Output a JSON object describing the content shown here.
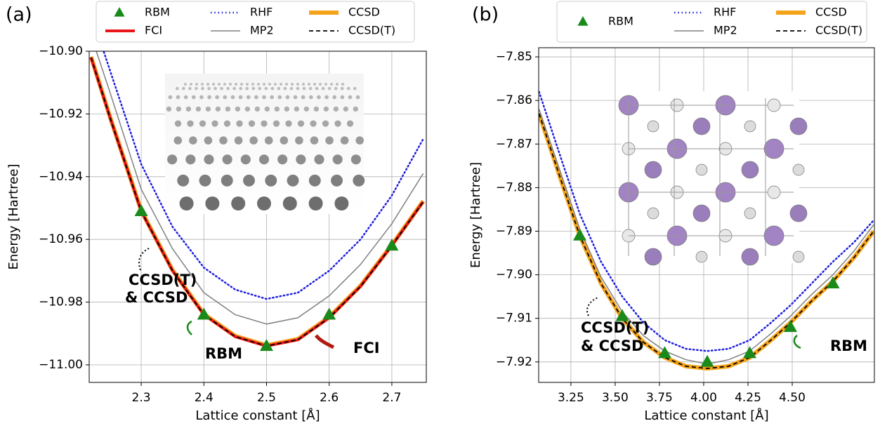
{
  "chart_data": [
    {
      "type": "line",
      "panel_label": "(a)",
      "xlabel": "Lattice constant [Å]",
      "ylabel": "Energy [Hartree]",
      "xlim": [
        2.217,
        2.755
      ],
      "ylim": [
        -11.0056,
        -10.9
      ],
      "xticks": [
        2.3,
        2.4,
        2.5,
        2.6,
        2.7
      ],
      "yticks": [
        {
          "value": -10.9,
          "label": "−10.90"
        },
        {
          "value": -10.92,
          "label": "−10.92"
        },
        {
          "value": -10.94,
          "label": "−10.94"
        },
        {
          "value": -10.96,
          "label": "−10.96"
        },
        {
          "value": -10.98,
          "label": "−10.98"
        },
        {
          "value": -11.0,
          "label": "−11.00"
        }
      ],
      "grid": true,
      "x": [
        2.22,
        2.25,
        2.3,
        2.35,
        2.4,
        2.45,
        2.5,
        2.55,
        2.6,
        2.65,
        2.7,
        2.75
      ],
      "series": [
        {
          "name": "RBM",
          "color": "#1a8a1a",
          "style": "marker",
          "x": [
            2.3,
            2.4,
            2.5,
            2.6,
            2.7
          ],
          "values": [
            -10.951,
            -10.984,
            -10.994,
            -10.984,
            -10.962
          ]
        },
        {
          "name": "RHF",
          "color": "#1f1fe0",
          "style": "dotted",
          "linewidth": 2.5,
          "values": [
            -10.888,
            -10.906,
            -10.936,
            -10.956,
            -10.969,
            -10.976,
            -10.979,
            -10.977,
            -10.97,
            -10.96,
            -10.946,
            -10.928
          ]
        },
        {
          "name": "CCSD",
          "color": "#f5a31a",
          "style": "solid",
          "linewidth": 6,
          "values": [
            -10.9018,
            -10.9208,
            -10.9508,
            -10.9698,
            -10.9838,
            -10.9908,
            -10.9938,
            -10.9918,
            -10.9848,
            -10.9748,
            -10.9618,
            -10.9478
          ]
        },
        {
          "name": "FCI",
          "color": "#e8161b",
          "style": "solid",
          "linewidth": 4,
          "values": [
            -10.902,
            -10.921,
            -10.951,
            -10.97,
            -10.984,
            -10.991,
            -10.994,
            -10.992,
            -10.985,
            -10.975,
            -10.962,
            -10.948
          ]
        },
        {
          "name": "MP2",
          "color": "#808080",
          "style": "solid",
          "linewidth": 1.5,
          "values": [
            -10.895,
            -10.913,
            -10.944,
            -10.963,
            -10.977,
            -10.984,
            -10.987,
            -10.985,
            -10.978,
            -10.968,
            -10.955,
            -10.939
          ]
        },
        {
          "name": "CCSD(T)",
          "color": "#000000",
          "style": "dashed",
          "linewidth": 1.8,
          "values": [
            -10.902,
            -10.921,
            -10.951,
            -10.97,
            -10.984,
            -10.991,
            -10.994,
            -10.992,
            -10.985,
            -10.975,
            -10.962,
            -10.948
          ]
        }
      ],
      "annotations": [
        {
          "text": "CCSD(T)",
          "color": "#000000"
        },
        {
          "text": "& CCSD",
          "color": "#f5a31a"
        },
        {
          "text": "RBM",
          "color": "#1a8a1a"
        },
        {
          "text": "FCI",
          "color": "#b01a10"
        }
      ]
    },
    {
      "type": "line",
      "panel_label": "(b)",
      "xlabel": "Lattice constant [Å]",
      "ylabel": "Energy [Hartree]",
      "xlim": [
        3.068,
        4.964
      ],
      "ylim": [
        -7.9247,
        -7.8479
      ],
      "xticks": [
        3.25,
        {
          "value": 3.5,
          "label": "3.50"
        },
        3.75,
        {
          "value": 4.0,
          "label": "4.00"
        },
        4.25,
        {
          "value": 4.5,
          "label": "4.50"
        }
      ],
      "yticks": [
        {
          "value": -7.85,
          "label": "−7.85"
        },
        {
          "value": -7.86,
          "label": "−7.86"
        },
        {
          "value": -7.87,
          "label": "−7.87"
        },
        {
          "value": -7.88,
          "label": "−7.88"
        },
        {
          "value": -7.89,
          "label": "−7.89"
        },
        {
          "value": -7.9,
          "label": "−7.90"
        },
        {
          "value": -7.91,
          "label": "−7.91"
        },
        {
          "value": -7.92,
          "label": "−7.92"
        }
      ],
      "grid": true,
      "x": [
        3.07,
        3.2,
        3.3,
        3.42,
        3.54,
        3.66,
        3.78,
        3.9,
        4.02,
        4.14,
        4.26,
        4.38,
        4.49,
        4.61,
        4.73,
        4.85,
        4.96
      ],
      "series": [
        {
          "name": "RBM",
          "color": "#1a8a1a",
          "style": "marker",
          "x": [
            3.3,
            3.54,
            3.78,
            4.02,
            4.26,
            4.49,
            4.73
          ],
          "values": [
            -7.891,
            -7.9095,
            -7.918,
            -7.92,
            -7.918,
            -7.912,
            -7.902
          ]
        },
        {
          "name": "RHF",
          "color": "#1f1fe0",
          "style": "dotted",
          "linewidth": 2.5,
          "values": [
            -7.858,
            -7.874,
            -7.886,
            -7.897,
            -7.905,
            -7.911,
            -7.915,
            -7.917,
            -7.9175,
            -7.917,
            -7.915,
            -7.911,
            -7.907,
            -7.902,
            -7.897,
            -7.8925,
            -7.8875
          ]
        },
        {
          "name": "CCSD",
          "color": "#f5a31a",
          "style": "solid",
          "linewidth": 6,
          "values": [
            -7.863,
            -7.879,
            -7.891,
            -7.902,
            -7.91,
            -7.9155,
            -7.919,
            -7.921,
            -7.9215,
            -7.921,
            -7.919,
            -7.915,
            -7.911,
            -7.906,
            -7.9015,
            -7.896,
            -7.89
          ]
        },
        {
          "name": "MP2",
          "color": "#808080",
          "style": "solid",
          "linewidth": 1.5,
          "values": [
            -7.862,
            -7.8775,
            -7.8895,
            -7.9005,
            -7.9085,
            -7.914,
            -7.9175,
            -7.9195,
            -7.9205,
            -7.9195,
            -7.9175,
            -7.9135,
            -7.9095,
            -7.9045,
            -7.9,
            -7.8945,
            -7.8885
          ]
        },
        {
          "name": "CCSD(T)",
          "color": "#000000",
          "style": "dashed",
          "linewidth": 1.8,
          "values": [
            -7.863,
            -7.879,
            -7.891,
            -7.902,
            -7.91,
            -7.9155,
            -7.919,
            -7.921,
            -7.9215,
            -7.921,
            -7.919,
            -7.915,
            -7.911,
            -7.906,
            -7.9015,
            -7.896,
            -7.89
          ]
        }
      ],
      "annotations": [
        {
          "text": "CCSD(T)",
          "color": "#000000"
        },
        {
          "text": "& CCSD",
          "color": "#f5a31a"
        },
        {
          "text": "RBM",
          "color": "#1a8a1a"
        }
      ]
    }
  ]
}
